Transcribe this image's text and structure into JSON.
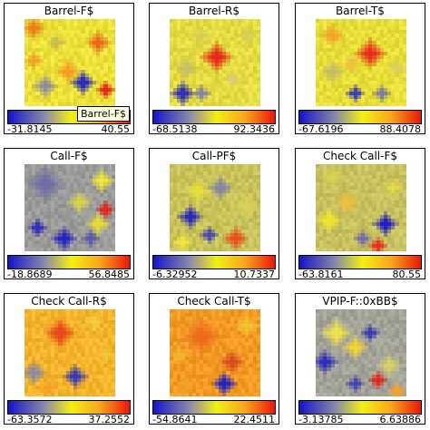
{
  "panels": [
    {
      "title": "Barrel-F$",
      "min": "-31.8145",
      "max": "40.55",
      "tooltip": "Barrel-F$",
      "bg": "#ece13a",
      "spots": [
        [
          2,
          2,
          3,
          "#e8821f"
        ],
        [
          11,
          14,
          3,
          "#f49b24"
        ],
        [
          8,
          6,
          2,
          "#c8bc55"
        ],
        [
          19,
          6,
          3,
          "#ea6a1c"
        ],
        [
          5,
          18,
          3,
          "#8f8f9c"
        ],
        [
          15,
          17,
          3,
          "#2d2db8"
        ],
        [
          21,
          19,
          2,
          "#e4281b"
        ],
        [
          2,
          11,
          2,
          "#f0a02a"
        ]
      ]
    },
    {
      "title": "Barrel-R$",
      "min": "-68.5138",
      "max": "92.3436",
      "bg": "#e3dc42",
      "spots": [
        [
          12,
          10,
          4,
          "#e8281a"
        ],
        [
          4,
          13,
          3,
          "#c6c062"
        ],
        [
          3,
          20,
          3,
          "#3232b2"
        ],
        [
          8,
          20,
          2,
          "#8585a0"
        ],
        [
          16,
          16,
          2,
          "#d8d06a"
        ],
        [
          20,
          4,
          2,
          "#d6cf58"
        ],
        [
          8,
          4,
          2,
          "#d7cf55"
        ]
      ]
    },
    {
      "title": "Barrel-T$",
      "min": "-67.6196",
      "max": "88.4078",
      "bg": "#e6df3a",
      "spots": [
        [
          14,
          9,
          4,
          "#e8321c"
        ],
        [
          4,
          4,
          3,
          "#f0a52c"
        ],
        [
          4,
          14,
          3,
          "#c4be62"
        ],
        [
          10,
          20,
          2,
          "#3d3db4"
        ],
        [
          17,
          20,
          2,
          "#7b7ba2"
        ],
        [
          21,
          13,
          2,
          "#d9d060"
        ],
        [
          9,
          12,
          2,
          "#f0c040"
        ]
      ]
    },
    {
      "title": "Call-F$",
      "min": "-18.8689",
      "max": "56.8485",
      "bg": "#9b9b9a",
      "spots": [
        [
          5,
          5,
          5,
          "#6f6fa5"
        ],
        [
          14,
          10,
          3,
          "#d6d14c"
        ],
        [
          20,
          4,
          3,
          "#efe63a"
        ],
        [
          10,
          20,
          3,
          "#2626bc"
        ],
        [
          3,
          17,
          2,
          "#3030ba"
        ],
        [
          19,
          16,
          3,
          "#e6dc36"
        ],
        [
          21,
          12,
          2,
          "#e3261a"
        ],
        [
          17,
          20,
          2,
          "#5a5aa8"
        ]
      ]
    },
    {
      "title": "Call-PF$",
      "min": "-6.32952",
      "max": "10.7337",
      "bg": "#c8c25a",
      "spots": [
        [
          7,
          7,
          3,
          "#e8e03a"
        ],
        [
          5,
          14,
          3,
          "#2a2abb"
        ],
        [
          13,
          6,
          3,
          "#8686a4"
        ],
        [
          17,
          20,
          3,
          "#e9501d"
        ],
        [
          10,
          19,
          2,
          "#4848b0"
        ],
        [
          20,
          11,
          3,
          "#d9d258"
        ],
        [
          3,
          21,
          2,
          "#f0e33a"
        ]
      ]
    },
    {
      "title": "Check Call-F$",
      "min": "-63.8161",
      "max": "80.55",
      "bg": "#c6c05e",
      "spots": [
        [
          18,
          16,
          3,
          "#2020c0"
        ],
        [
          8,
          10,
          3,
          "#ecbf3a"
        ],
        [
          4,
          3,
          3,
          "#d8d254"
        ],
        [
          12,
          20,
          2,
          "#7070a6"
        ],
        [
          20,
          6,
          2,
          "#e8dc40"
        ],
        [
          16,
          22,
          2,
          "#e9301c"
        ],
        [
          3,
          15,
          3,
          "#f0e32e"
        ]
      ]
    },
    {
      "title": "Check Call-R$",
      "min": "-63.3572",
      "max": "37.2552",
      "bg": "#f3b32a",
      "spots": [
        [
          9,
          6,
          4,
          "#e8481d"
        ],
        [
          13,
          18,
          3,
          "#3c3cb4"
        ],
        [
          2,
          17,
          3,
          "#8d8d9e"
        ],
        [
          18,
          3,
          2,
          "#f4d03a"
        ],
        [
          21,
          12,
          2,
          "#f2c634"
        ],
        [
          6,
          21,
          2,
          "#f3a126"
        ]
      ]
    },
    {
      "title": "Check Call-T$",
      "min": "-54.8641",
      "max": "22.4511",
      "bg": "#f39a25",
      "spots": [
        [
          8,
          7,
          5,
          "#ed6a1e"
        ],
        [
          16,
          14,
          3,
          "#d84d1f"
        ],
        [
          14,
          20,
          3,
          "#2424be"
        ],
        [
          20,
          4,
          3,
          "#f4c12e"
        ],
        [
          4,
          20,
          2,
          "#f0a426"
        ],
        [
          2,
          12,
          2,
          "#f2b52a"
        ]
      ]
    },
    {
      "title": "VPIP-F::0xBB$",
      "min": "-3.13785",
      "max": "6.63886",
      "bg": "#a3a39a",
      "spots": [
        [
          5,
          6,
          4,
          "#eee44a"
        ],
        [
          2,
          14,
          3,
          "#2e2eb8"
        ],
        [
          10,
          10,
          3,
          "#f4d23a"
        ],
        [
          14,
          6,
          2,
          "#3b3bb6"
        ],
        [
          19,
          15,
          3,
          "#d8d266"
        ],
        [
          10,
          20,
          2,
          "#4646b0"
        ],
        [
          16,
          19,
          2,
          "#e72518"
        ],
        [
          21,
          22,
          2,
          "#f0a22a"
        ]
      ]
    }
  ]
}
